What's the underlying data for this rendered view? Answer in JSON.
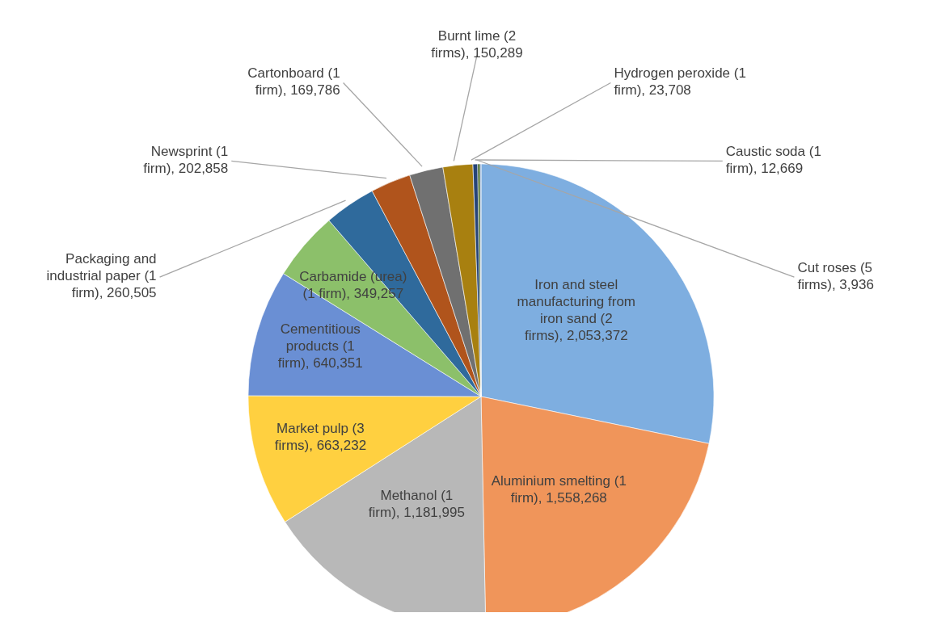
{
  "chart_data": {
    "type": "pie",
    "categories": [
      "Iron and steel manufacturing from iron sand (2 firms)",
      "Aluminium smelting (1 firm)",
      "Methanol (1 firm)",
      "Market pulp (3 firms)",
      "Cementitious products (1 firm)",
      "Carbamide (urea) (1 firm)",
      "Packaging and industrial paper (1 firm)",
      "Newsprint (1 firm)",
      "Cartonboard (1 firm)",
      "Burnt lime (2 firms)",
      "Hydrogen peroxide (1 firm)",
      "Caustic soda (1 firm)",
      "Cut roses (5 firms)"
    ],
    "value_labels": [
      "2,053,372",
      "1,558,268",
      "1,181,995",
      "663,232",
      "640,351",
      "349,257",
      "260,505",
      "202,858",
      "169,786",
      "150,289",
      "23,708",
      "12,669",
      "3,936"
    ],
    "values": [
      2053372,
      1558268,
      1181995,
      663232,
      640351,
      349257,
      260505,
      202858,
      169786,
      150289,
      23708,
      12669,
      3936
    ],
    "colors": [
      "#7eaee0",
      "#f0955a",
      "#b8b8b8",
      "#ffd040",
      "#6a8fd4",
      "#8cc06a",
      "#2f6a9c",
      "#b0541c",
      "#707070",
      "#a88010",
      "#264478",
      "#43682b",
      "#698ed0"
    ]
  }
}
